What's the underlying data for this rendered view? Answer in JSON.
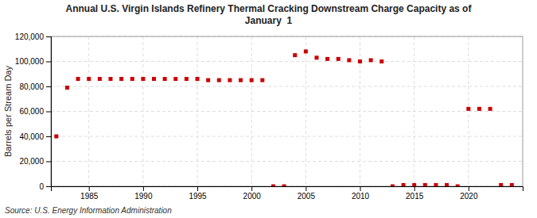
{
  "chart_data": {
    "type": "scatter",
    "title": "Annual U.S. Virgin Islands Refinery Thermal Cracking Downstream Charge Capacity as of\nJanuary  1",
    "ylabel": "Barrels per Stream Day",
    "source": "Source: U.S. Energy Information Administration",
    "x": [
      1982,
      1983,
      1984,
      1985,
      1986,
      1987,
      1988,
      1989,
      1990,
      1991,
      1992,
      1993,
      1994,
      1995,
      1996,
      1997,
      1998,
      1999,
      2000,
      2001,
      2002,
      2003,
      2004,
      2005,
      2006,
      2007,
      2008,
      2009,
      2010,
      2011,
      2012,
      2013,
      2014,
      2015,
      2016,
      2017,
      2018,
      2019,
      2020,
      2021,
      2022,
      2023,
      2024
    ],
    "values": [
      40000,
      79000,
      86000,
      86000,
      86000,
      86000,
      86000,
      86000,
      86000,
      86000,
      86000,
      86000,
      86000,
      86000,
      85000,
      85000,
      85000,
      85000,
      85000,
      85000,
      0,
      0,
      105000,
      108000,
      103000,
      102000,
      102000,
      101000,
      100000,
      101000,
      100000,
      0,
      1000,
      1000,
      1000,
      1000,
      1000,
      0,
      62000,
      62000,
      62000,
      1000,
      1000
    ],
    "color": "#cc0000",
    "marker": "square",
    "xlim": [
      1981.5,
      2025
    ],
    "xticks": [
      1985,
      1990,
      1995,
      2000,
      2005,
      2010,
      2015,
      2020
    ],
    "ylim": [
      0,
      120000
    ],
    "yticks": [
      0,
      {
        "value": 20000,
        "label": "20,000"
      },
      {
        "value": 40000,
        "label": "40,000"
      },
      {
        "value": 60000,
        "label": "60,000"
      },
      {
        "value": 80000,
        "label": "80,000"
      },
      {
        "value": 100000,
        "label": "100,000"
      },
      {
        "value": 120000,
        "label": "120,000"
      }
    ],
    "grid": true
  }
}
